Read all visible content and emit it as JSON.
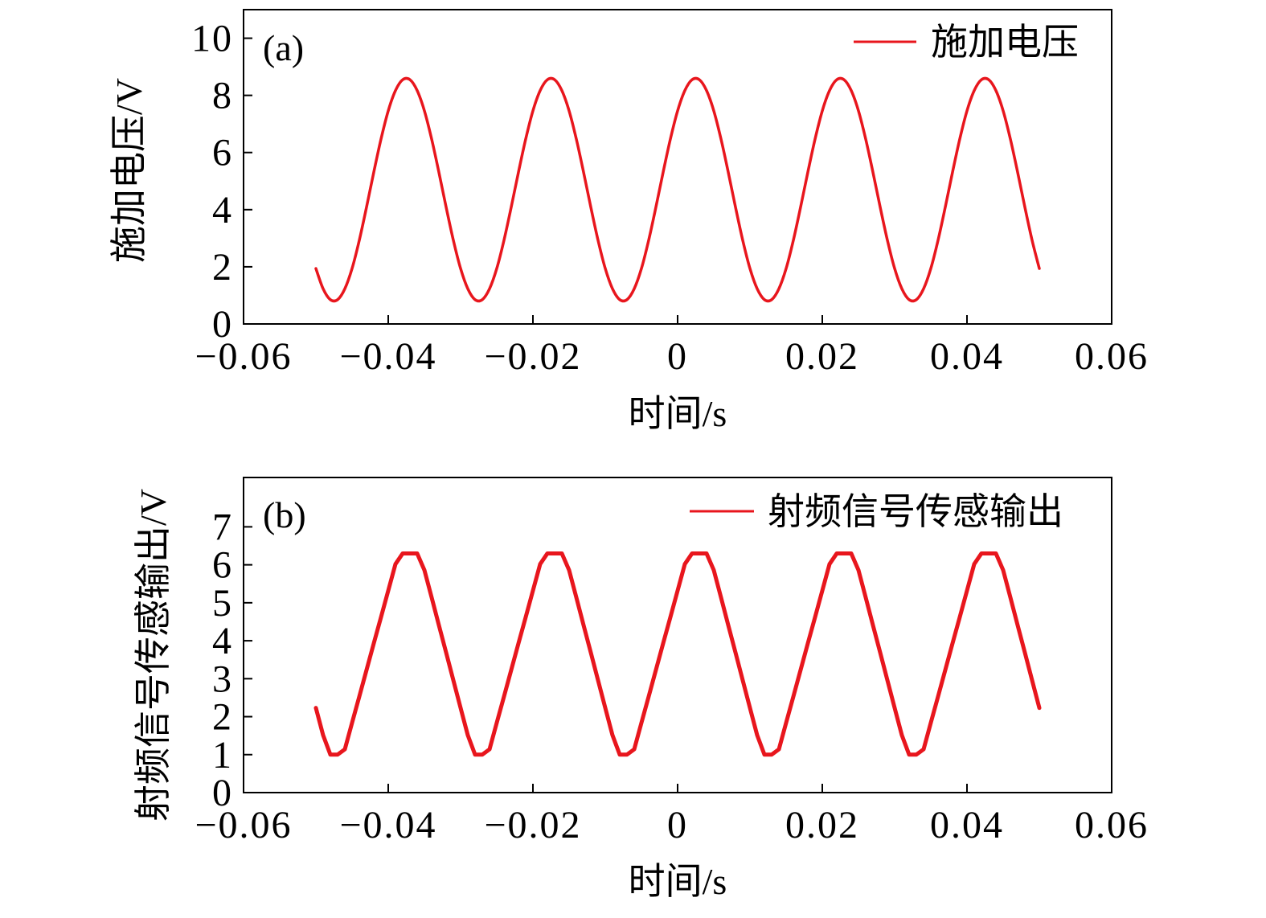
{
  "chart_data": [
    {
      "panel": "(a)",
      "type": "line",
      "xlabel": "时间/s",
      "ylabel": "施加电压/V",
      "xlim": [
        -0.06,
        0.06
      ],
      "ylim": [
        0,
        11
      ],
      "grid": false,
      "legend": "top-right",
      "xticks": [
        {
          "value": -0.06,
          "label": "−0.06"
        },
        {
          "value": -0.04,
          "label": "−0.04"
        },
        {
          "value": -0.02,
          "label": "−0.02"
        },
        {
          "value": 0,
          "label": "0"
        },
        {
          "value": 0.02,
          "label": "0.02"
        },
        {
          "value": 0.04,
          "label": "0.04"
        },
        {
          "value": 0.06,
          "label": "0.06"
        }
      ],
      "yticks": [
        {
          "value": 0,
          "label": "0"
        },
        {
          "value": 2,
          "label": "2"
        },
        {
          "value": 4,
          "label": "4"
        },
        {
          "value": 6,
          "label": "6"
        },
        {
          "value": 8,
          "label": "8"
        },
        {
          "value": 10,
          "label": "10"
        }
      ],
      "x": [
        -0.05,
        -0.049,
        -0.048,
        -0.047,
        -0.046,
        -0.045,
        -0.044,
        -0.043,
        -0.042,
        -0.041,
        -0.04,
        -0.039,
        -0.038,
        -0.037,
        -0.036,
        -0.035,
        -0.034,
        -0.033,
        -0.032,
        -0.031,
        -0.03,
        -0.029,
        -0.028,
        -0.027,
        -0.026,
        -0.025,
        -0.024,
        -0.023,
        -0.022,
        -0.021,
        -0.02,
        -0.019,
        -0.018,
        -0.017,
        -0.016,
        -0.015,
        -0.014,
        -0.013,
        -0.012,
        -0.011,
        -0.01,
        -0.009,
        -0.008,
        -0.007,
        -0.006,
        -0.005,
        -0.004,
        -0.003,
        -0.002,
        -0.001,
        0,
        0.001,
        0.002,
        0.003,
        0.004,
        0.005,
        0.006,
        0.007,
        0.008,
        0.009,
        0.01,
        0.011,
        0.012,
        0.013,
        0.014,
        0.015,
        0.016,
        0.017,
        0.018,
        0.019,
        0.02,
        0.021,
        0.022,
        0.023,
        0.024,
        0.025,
        0.026,
        0.027,
        0.028,
        0.029,
        0.03,
        0.031,
        0.032,
        0.033,
        0.034,
        0.035,
        0.036,
        0.037,
        0.038,
        0.039,
        0.04,
        0.041,
        0.042,
        0.043,
        0.044,
        0.045,
        0.046,
        0.047,
        0.048,
        0.049,
        0.05
      ],
      "series": [
        {
          "name": "施加电压",
          "color": "#e8161d",
          "values": [
            1.94,
            1.23,
            0.85,
            0.85,
            1.23,
            1.94,
            2.93,
            4.09,
            5.31,
            6.47,
            7.46,
            8.17,
            8.55,
            8.55,
            8.17,
            7.46,
            6.47,
            5.31,
            4.09,
            2.93,
            1.94,
            1.23,
            0.85,
            0.85,
            1.23,
            1.94,
            2.93,
            4.09,
            5.31,
            6.47,
            7.46,
            8.17,
            8.55,
            8.55,
            8.17,
            7.46,
            6.47,
            5.31,
            4.09,
            2.93,
            1.94,
            1.23,
            0.85,
            0.85,
            1.23,
            1.94,
            2.93,
            4.09,
            5.31,
            6.47,
            7.46,
            8.17,
            8.55,
            8.55,
            8.17,
            7.46,
            6.47,
            5.31,
            4.09,
            2.93,
            1.94,
            1.23,
            0.85,
            0.85,
            1.23,
            1.94,
            2.93,
            4.09,
            5.31,
            6.47,
            7.46,
            8.17,
            8.55,
            8.55,
            8.17,
            7.46,
            6.47,
            5.31,
            4.09,
            2.93,
            1.94,
            1.23,
            0.85,
            0.85,
            1.23,
            1.94,
            2.93,
            4.09,
            5.31,
            6.47,
            7.46,
            8.17,
            8.55,
            8.55,
            8.17,
            7.46,
            6.47,
            5.31,
            4.09,
            2.93,
            1.94
          ]
        }
      ]
    },
    {
      "panel": "(b)",
      "type": "line",
      "xlabel": "时间/s",
      "ylabel": "射频信号传感输出/V",
      "xlim": [
        -0.06,
        0.06
      ],
      "ylim": [
        0,
        8.3
      ],
      "grid": false,
      "legend": "top-right",
      "xticks": [
        {
          "value": -0.06,
          "label": "−0.06"
        },
        {
          "value": -0.04,
          "label": "−0.04"
        },
        {
          "value": -0.02,
          "label": "−0.02"
        },
        {
          "value": 0,
          "label": "0"
        },
        {
          "value": 0.02,
          "label": "0.02"
        },
        {
          "value": 0.04,
          "label": "0.04"
        },
        {
          "value": 0.06,
          "label": "0.06"
        }
      ],
      "yticks": [
        {
          "value": 0,
          "label": "0"
        },
        {
          "value": 1,
          "label": "1"
        },
        {
          "value": 2,
          "label": "2"
        },
        {
          "value": 3,
          "label": "3"
        },
        {
          "value": 4,
          "label": "4"
        },
        {
          "value": 5,
          "label": "5"
        },
        {
          "value": 6,
          "label": "6"
        },
        {
          "value": 7,
          "label": "7"
        }
      ],
      "x": [
        -0.05,
        -0.049,
        -0.048,
        -0.047,
        -0.046,
        -0.045,
        -0.044,
        -0.043,
        -0.042,
        -0.041,
        -0.04,
        -0.039,
        -0.038,
        -0.037,
        -0.036,
        -0.035,
        -0.034,
        -0.033,
        -0.032,
        -0.031,
        -0.03,
        -0.029,
        -0.028,
        -0.027,
        -0.026,
        -0.025,
        -0.024,
        -0.023,
        -0.022,
        -0.021,
        -0.02,
        -0.019,
        -0.018,
        -0.017,
        -0.016,
        -0.015,
        -0.014,
        -0.013,
        -0.012,
        -0.011,
        -0.01,
        -0.009,
        -0.008,
        -0.007,
        -0.006,
        -0.005,
        -0.004,
        -0.003,
        -0.002,
        -0.001,
        0,
        0.001,
        0.002,
        0.003,
        0.004,
        0.005,
        0.006,
        0.007,
        0.008,
        0.009,
        0.01,
        0.011,
        0.012,
        0.013,
        0.014,
        0.015,
        0.016,
        0.017,
        0.018,
        0.019,
        0.02,
        0.021,
        0.022,
        0.023,
        0.024,
        0.025,
        0.026,
        0.027,
        0.028,
        0.029,
        0.03,
        0.031,
        0.032,
        0.033,
        0.034,
        0.035,
        0.036,
        0.037,
        0.038,
        0.039,
        0.04,
        0.041,
        0.042,
        0.043,
        0.044,
        0.045,
        0.046,
        0.047,
        0.048,
        0.049,
        0.05
      ],
      "series": [
        {
          "name": "射频信号传感输出",
          "color": "#e8161d",
          "values": [
            2.23,
            1.51,
            1.0,
            1.0,
            1.14,
            1.84,
            2.53,
            3.23,
            3.93,
            4.62,
            5.32,
            6.02,
            6.3,
            6.3,
            6.3,
            5.86,
            5.14,
            4.41,
            3.69,
            2.96,
            2.23,
            1.51,
            1.0,
            1.0,
            1.14,
            1.84,
            2.53,
            3.23,
            3.93,
            4.62,
            5.32,
            6.02,
            6.3,
            6.3,
            6.3,
            5.86,
            5.14,
            4.41,
            3.69,
            2.96,
            2.23,
            1.51,
            1.0,
            1.0,
            1.14,
            1.84,
            2.53,
            3.23,
            3.93,
            4.62,
            5.32,
            6.02,
            6.3,
            6.3,
            6.3,
            5.86,
            5.14,
            4.41,
            3.69,
            2.96,
            2.23,
            1.51,
            1.0,
            1.0,
            1.14,
            1.84,
            2.53,
            3.23,
            3.93,
            4.62,
            5.32,
            6.02,
            6.3,
            6.3,
            6.3,
            5.86,
            5.14,
            4.41,
            3.69,
            2.96,
            2.23,
            1.51,
            1.0,
            1.0,
            1.14,
            1.84,
            2.53,
            3.23,
            3.93,
            4.62,
            5.32,
            6.02,
            6.3,
            6.3,
            6.3,
            5.86,
            5.14,
            4.41,
            3.69,
            2.96,
            2.23
          ]
        }
      ]
    }
  ]
}
